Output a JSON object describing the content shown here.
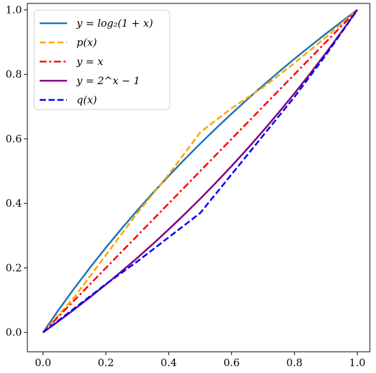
{
  "chart_data": {
    "type": "line",
    "title": "",
    "xlabel": "",
    "ylabel": "",
    "xlim": [
      -0.05,
      1.04
    ],
    "ylim": [
      -0.06,
      1.02
    ],
    "grid": false,
    "legend_position": "upper-left",
    "x_ticks": [
      "0.0",
      "0.2",
      "0.4",
      "0.6",
      "0.8",
      "1.0"
    ],
    "y_ticks": [
      "0.0",
      "0.2",
      "0.4",
      "0.6",
      "0.8",
      "1.0"
    ],
    "series": [
      {
        "name": "y = log₂(1 + x)",
        "color": "#1f77b4",
        "dash": "solid",
        "x": [
          0,
          0.05,
          0.1,
          0.15,
          0.2,
          0.25,
          0.3,
          0.35,
          0.4,
          0.45,
          0.5,
          0.55,
          0.6,
          0.65,
          0.7,
          0.75,
          0.8,
          0.85,
          0.9,
          0.95,
          1.0
        ],
        "y": [
          0,
          0.0704,
          0.1375,
          0.2016,
          0.263,
          0.3219,
          0.3785,
          0.433,
          0.4854,
          0.5361,
          0.585,
          0.6323,
          0.6781,
          0.7225,
          0.7655,
          0.8074,
          0.848,
          0.8875,
          0.926,
          0.9635,
          1.0
        ]
      },
      {
        "name": "p(x)",
        "color": "#ffa500",
        "dash": "dashed",
        "x": [
          0,
          0.1,
          0.2,
          0.3,
          0.4,
          0.5,
          0.6,
          0.7,
          0.8,
          0.9,
          1.0
        ],
        "y": [
          0,
          0.11,
          0.24,
          0.37,
          0.49,
          0.62,
          0.695,
          0.76,
          0.835,
          0.915,
          1.0
        ]
      },
      {
        "name": "y = x",
        "color": "#ff0000",
        "dash": "dashdot",
        "x": [
          0,
          1.0
        ],
        "y": [
          0,
          1.0
        ]
      },
      {
        "name": "y = 2^x − 1",
        "color": "#800080",
        "dash": "solid",
        "x": [
          0,
          0.05,
          0.1,
          0.15,
          0.2,
          0.25,
          0.3,
          0.35,
          0.4,
          0.45,
          0.5,
          0.55,
          0.6,
          0.65,
          0.7,
          0.75,
          0.8,
          0.85,
          0.9,
          0.95,
          1.0
        ],
        "y": [
          0,
          0.0353,
          0.0718,
          0.1096,
          0.1487,
          0.1892,
          0.2311,
          0.2746,
          0.3195,
          0.3661,
          0.4142,
          0.4641,
          0.5157,
          0.5692,
          0.6245,
          0.6818,
          0.7411,
          0.8025,
          0.8661,
          0.9319,
          1.0
        ]
      },
      {
        "name": "q(x)",
        "color": "#0000ff",
        "dash": "dashed",
        "x": [
          0,
          0.1,
          0.2,
          0.3,
          0.4,
          0.5,
          0.6,
          0.7,
          0.8,
          0.9,
          1.0
        ],
        "y": [
          0,
          0.075,
          0.15,
          0.22,
          0.295,
          0.37,
          0.49,
          0.61,
          0.73,
          0.86,
          1.0
        ]
      }
    ]
  }
}
